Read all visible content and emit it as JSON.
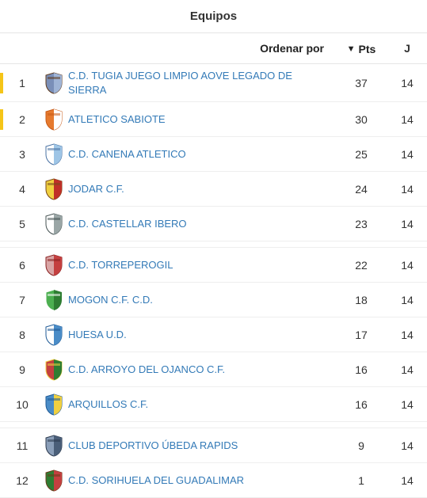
{
  "header": {
    "title": "Equipos",
    "sort_label": "Ordenar por",
    "pts_label": "Pts",
    "j_label": "J"
  },
  "colors": {
    "gold_marker": "#f5c518",
    "link": "#337ab7",
    "border": "#e5e5e5"
  },
  "rows": [
    {
      "rank": "1",
      "marker": "gold",
      "team": "C.D. TUGIA JUEGO LIMPIO AOVE LEGADO DE SIERRA",
      "pts": "37",
      "played": "14",
      "shield_colors": [
        "#7a8fb8",
        "#9fb4d6",
        "#5f3b1e"
      ]
    },
    {
      "rank": "2",
      "marker": "gold",
      "team": "ATLETICO SABIOTE",
      "pts": "30",
      "played": "14",
      "shield_colors": [
        "#e67a2e",
        "#ffffff",
        "#c85a16"
      ]
    },
    {
      "rank": "3",
      "marker": "",
      "team": "C.D. CANENA ATLETICO",
      "pts": "25",
      "played": "14",
      "shield_colors": [
        "#ffffff",
        "#9ec5e6",
        "#4a72a3"
      ]
    },
    {
      "rank": "4",
      "marker": "",
      "team": "JODAR C.F.",
      "pts": "24",
      "played": "14",
      "shield_colors": [
        "#f0d040",
        "#c03028",
        "#7a4a18"
      ]
    },
    {
      "rank": "5",
      "marker": "",
      "team": "C.D. CASTELLAR IBERO",
      "pts": "23",
      "played": "14",
      "shield_colors": [
        "#ffffff",
        "#9aa6a6",
        "#455252"
      ]
    },
    {
      "rank": "6",
      "marker": "",
      "team": "C.D. TORREPEROGIL",
      "pts": "22",
      "played": "14",
      "shield_colors": [
        "#d9a5a5",
        "#c44040",
        "#8a2222"
      ]
    },
    {
      "rank": "7",
      "marker": "",
      "team": "MOGON C.F. C.D.",
      "pts": "18",
      "played": "14",
      "shield_colors": [
        "#4caf50",
        "#2e7d32",
        "#ffffff"
      ]
    },
    {
      "rank": "8",
      "marker": "",
      "team": "HUESA U.D.",
      "pts": "17",
      "played": "14",
      "shield_colors": [
        "#ffffff",
        "#4a8cc7",
        "#1f5a96"
      ]
    },
    {
      "rank": "9",
      "marker": "",
      "team": "C.D. ARROYO DEL OJANCO C.F.",
      "pts": "16",
      "played": "14",
      "shield_colors": [
        "#c44040",
        "#2e7d32",
        "#f0d040"
      ]
    },
    {
      "rank": "10",
      "marker": "",
      "team": "ARQUILLOS C.F.",
      "pts": "16",
      "played": "14",
      "shield_colors": [
        "#4a8cc7",
        "#f0d040",
        "#1f5a96"
      ]
    },
    {
      "rank": "11",
      "marker": "",
      "team": "CLUB DEPORTIVO ÚBEDA RAPIDS",
      "pts": "9",
      "played": "14",
      "shield_colors": [
        "#8a9eb8",
        "#4a5e78",
        "#2c3a4e"
      ]
    },
    {
      "rank": "12",
      "marker": "",
      "team": "C.D. SORIHUELA DEL GUADALIMAR",
      "pts": "1",
      "played": "14",
      "shield_colors": [
        "#2e7d32",
        "#c44040",
        "#6a3a1a"
      ]
    }
  ],
  "group_breaks_after": [
    5,
    10
  ]
}
